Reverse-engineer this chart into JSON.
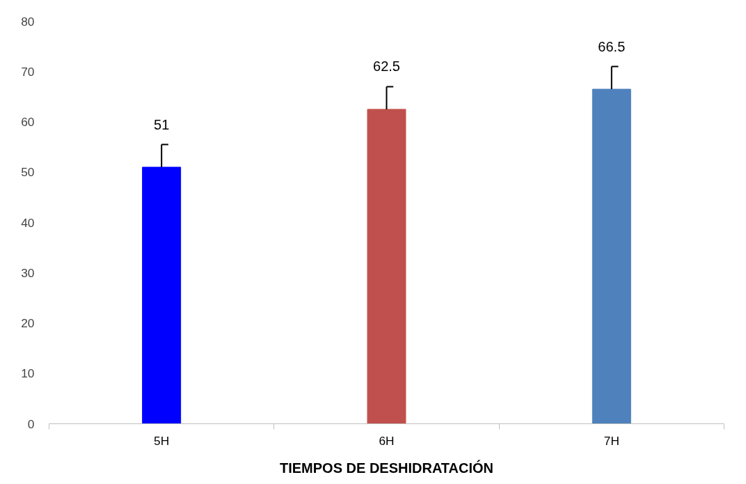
{
  "chart_data": {
    "type": "bar",
    "xlabel": "TIEMPOS DE DESHIDRATACIÓN",
    "categories": [
      "5H",
      "6H",
      "7H"
    ],
    "values": [
      51,
      62.5,
      66.5
    ],
    "colors": [
      "#0000ff",
      "#c0504d",
      "#4f81bd"
    ],
    "errors": [
      [
        51,
        55.5
      ],
      [
        62.5,
        67
      ],
      [
        66.5,
        71
      ]
    ],
    "data_labels": true,
    "ylim": [
      0,
      80
    ],
    "yticks": [
      0,
      10,
      20,
      30,
      40,
      50,
      60,
      70,
      80
    ],
    "grid": false
  }
}
